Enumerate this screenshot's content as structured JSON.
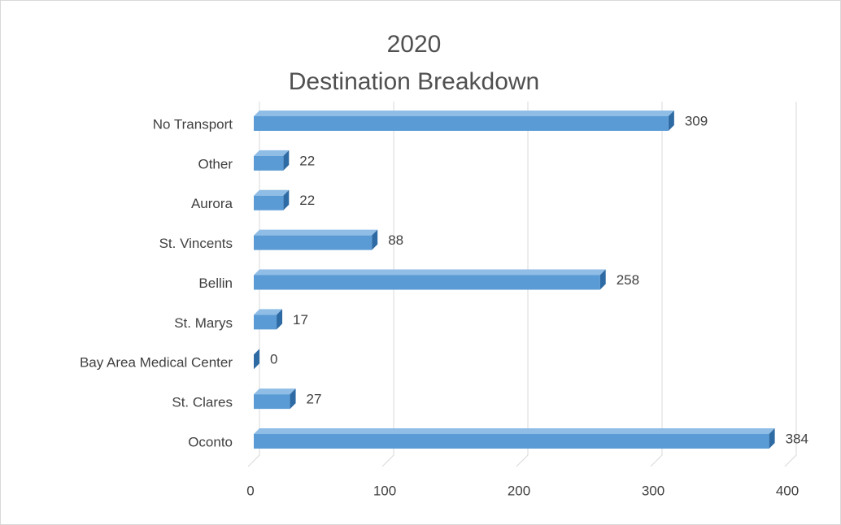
{
  "chart_data": {
    "type": "bar3d_horizontal",
    "title": [
      "2020",
      "Destination Breakdown"
    ],
    "categories": [
      "Oconto",
      "St. Clares",
      "Bay Area Medical Center",
      "St. Marys",
      "Bellin",
      "St. Vincents",
      "Aurora",
      "Other",
      "No Transport"
    ],
    "values": [
      384,
      27,
      0,
      17,
      258,
      88,
      22,
      22,
      309
    ],
    "color": "#5b9bd5",
    "xlim": [
      0,
      400
    ],
    "xticks": [
      0,
      100,
      200,
      300,
      400
    ],
    "grid": true
  }
}
